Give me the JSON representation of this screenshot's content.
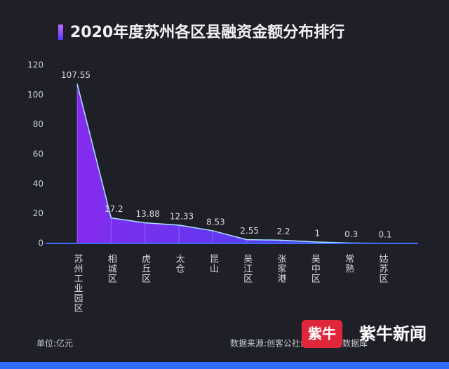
{
  "chart_data": {
    "type": "area",
    "title": "2020年度苏州各区县融资金额分布排行",
    "categories": [
      "苏州工业园区",
      "相城区",
      "虎丘区",
      "太仓",
      "昆山",
      "吴江区",
      "张家港",
      "吴中区",
      "常熟",
      "姑苏区"
    ],
    "values": [
      107.55,
      17.2,
      13.88,
      12.33,
      8.53,
      2.55,
      2.2,
      1,
      0.3,
      0.1
    ],
    "color": "#6a2cf5",
    "ylim": [
      0,
      120
    ],
    "yticks": [
      0,
      20,
      40,
      60,
      80,
      100,
      120
    ],
    "unit_note": "单位:亿元",
    "source": "数据来源:创客公社创客库企业数据库"
  },
  "logo": {
    "badge": "紫牛",
    "text": "紫牛新闻"
  }
}
